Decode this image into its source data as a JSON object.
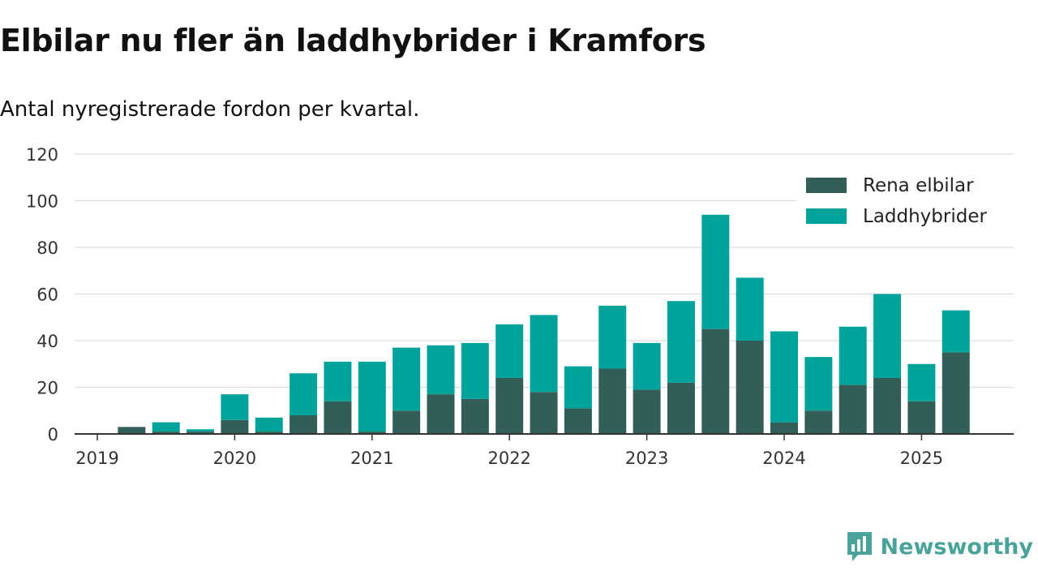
{
  "title": "Elbilar nu fler än laddhybrider i Kramfors",
  "subtitle": "Antal nyregistrerade fordon per kvartal.",
  "brand": "Newsworthy",
  "colors": {
    "elbilar": "#335e57",
    "laddhybrider": "#00a39a",
    "grid": "#dddddd",
    "axis": "#333333"
  },
  "chart_data": {
    "type": "bar",
    "stacked": true,
    "categories": [
      "2019 Q1",
      "2019 Q2",
      "2019 Q3",
      "2019 Q4",
      "2020 Q1",
      "2020 Q2",
      "2020 Q3",
      "2020 Q4",
      "2021 Q1",
      "2021 Q2",
      "2021 Q3",
      "2021 Q4",
      "2022 Q1",
      "2022 Q2",
      "2022 Q3",
      "2022 Q4",
      "2023 Q1",
      "2023 Q2",
      "2023 Q3",
      "2023 Q4",
      "2024 Q1",
      "2024 Q2",
      "2024 Q3",
      "2024 Q4",
      "2025 Q1",
      "2025 Q2"
    ],
    "series": [
      {
        "name": "Rena elbilar",
        "values": [
          0,
          3,
          1,
          1,
          6,
          1,
          8,
          14,
          1,
          10,
          17,
          15,
          24,
          18,
          11,
          28,
          19,
          22,
          45,
          40,
          5,
          10,
          21,
          24,
          14,
          35
        ]
      },
      {
        "name": "Laddhybrider",
        "values": [
          0,
          0,
          4,
          1,
          11,
          6,
          18,
          17,
          30,
          27,
          21,
          24,
          23,
          33,
          18,
          27,
          20,
          35,
          49,
          27,
          39,
          23,
          25,
          36,
          16,
          18
        ]
      }
    ],
    "x_tick_labels": [
      "2019",
      "2020",
      "2021",
      "2022",
      "2023",
      "2024",
      "2025"
    ],
    "y_ticks": [
      0,
      20,
      40,
      60,
      80,
      100,
      120
    ],
    "ylim": [
      0,
      120
    ],
    "grid": true,
    "legend_position": "top-right"
  }
}
